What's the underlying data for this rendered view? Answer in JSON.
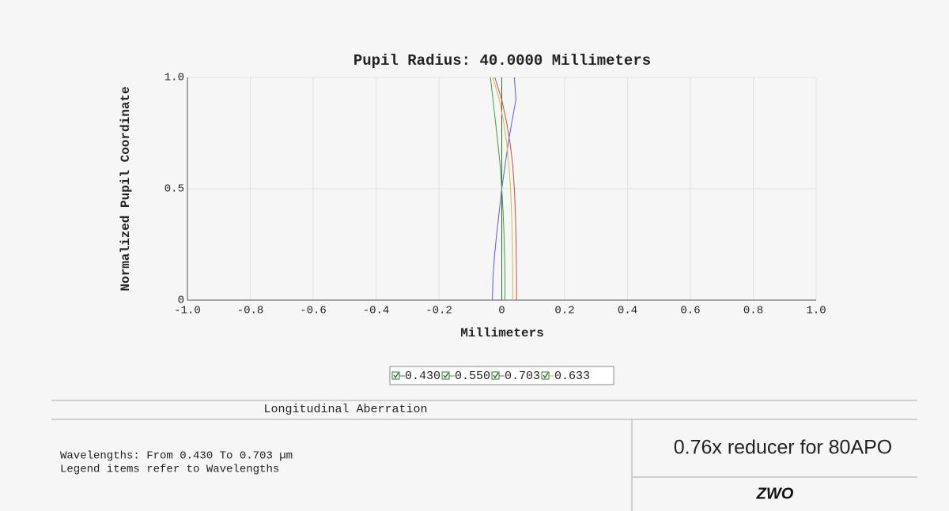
{
  "chart_data": {
    "type": "line",
    "title": "Pupil Radius: 40.0000 Millimeters",
    "x_label": "Millimeters",
    "y_label": "Normalized Pupil Coordinate",
    "y": [
      0,
      0.1,
      0.2,
      0.3,
      0.4,
      0.5,
      0.6,
      0.7,
      0.8,
      0.9,
      1.0
    ],
    "series": [
      {
        "name": "0.430",
        "color": "#5a5ad2",
        "values": [
          -0.03,
          -0.028,
          -0.023,
          -0.016,
          -0.008,
          0,
          0.01,
          0.02,
          0.032,
          0.045,
          0.04
        ]
      },
      {
        "name": "0.550",
        "color": "#3f9d3f",
        "values": [
          0.01,
          0.01,
          0.009,
          0.007,
          0.004,
          0,
          -0.005,
          -0.012,
          -0.02,
          -0.028,
          -0.036
        ]
      },
      {
        "name": "0.703",
        "color": "#cc4a4a",
        "values": [
          0.047,
          0.047,
          0.046,
          0.045,
          0.043,
          0.04,
          0.035,
          0.027,
          0.015,
          0,
          -0.022
        ]
      },
      {
        "name": "0.633",
        "color": "#d2b84a",
        "values": [
          0.035,
          0.035,
          0.034,
          0.033,
          0.031,
          0.028,
          0.023,
          0.016,
          0.006,
          -0.008,
          -0.028
        ]
      }
    ],
    "xlim": [
      -1,
      1
    ],
    "ylim": [
      0,
      1
    ],
    "xticks": [
      {
        "value": -1,
        "label": "-1.0"
      },
      -0.8,
      -0.6,
      -0.4,
      -0.2,
      0,
      0.2,
      0.4,
      0.6,
      0.8,
      {
        "value": 1,
        "label": "1.0"
      }
    ],
    "yticks": [
      0,
      0.5,
      {
        "value": 1,
        "label": "1.0"
      }
    ],
    "grid": true
  },
  "footer": {
    "title": "Longitudinal Aberration",
    "lines": [
      "Wavelengths: From 0.430 To 0.703 µm",
      "Legend items refer to Wavelengths"
    ],
    "label": "0.76x reducer for 80APO",
    "logo": "ZWO"
  }
}
